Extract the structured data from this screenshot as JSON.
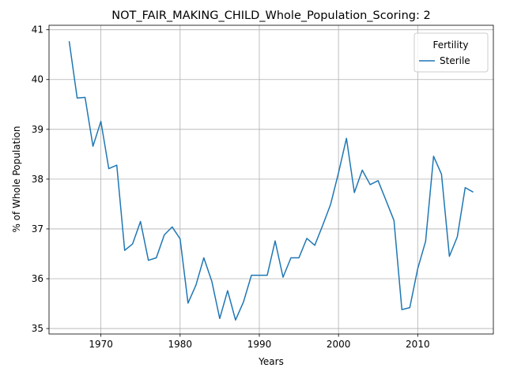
{
  "chart_data": {
    "type": "line",
    "title": "NOT_FAIR_MAKING_CHILD_Whole_Population_Scoring: 2",
    "xlabel": "Years",
    "ylabel": "% of Whole Population",
    "xlim": [
      1963.45,
      2019.55
    ],
    "ylim": [
      34.89,
      41.09
    ],
    "xticks": [
      1970,
      1980,
      1990,
      2000,
      2010
    ],
    "yticks": [
      35,
      36,
      37,
      38,
      39,
      40,
      41
    ],
    "grid": true,
    "legend": {
      "title": "Fertility",
      "placement": "top-right"
    },
    "series": [
      {
        "name": "Sterile",
        "color": "#1f77b4",
        "x": [
          1966,
          1967,
          1968,
          1969,
          1970,
          1971,
          1972,
          1973,
          1974,
          1975,
          1976,
          1977,
          1978,
          1979,
          1980,
          1981,
          1982,
          1983,
          1984,
          1985,
          1986,
          1987,
          1988,
          1989,
          1990,
          1991,
          1992,
          1993,
          1994,
          1995,
          1996,
          1997,
          1998,
          1999,
          2000,
          2001,
          2002,
          2003,
          2004,
          2005,
          2006,
          2007,
          2008,
          2009,
          2010,
          2011,
          2012,
          2013,
          2014,
          2015,
          2016,
          2017
        ],
        "values": [
          40.77,
          39.63,
          39.64,
          38.66,
          39.16,
          38.21,
          38.28,
          36.57,
          36.7,
          37.15,
          36.37,
          36.42,
          36.88,
          37.04,
          36.8,
          35.51,
          35.87,
          36.42,
          35.95,
          35.2,
          35.76,
          35.17,
          35.53,
          36.07,
          36.07,
          36.07,
          36.76,
          36.03,
          36.42,
          36.42,
          36.81,
          36.67,
          37.07,
          37.49,
          38.13,
          38.82,
          37.73,
          38.18,
          37.89,
          37.97,
          37.57,
          37.17,
          35.38,
          35.42,
          36.2,
          36.75,
          38.46,
          38.1,
          36.45,
          36.84,
          37.83,
          37.74
        ]
      }
    ]
  }
}
